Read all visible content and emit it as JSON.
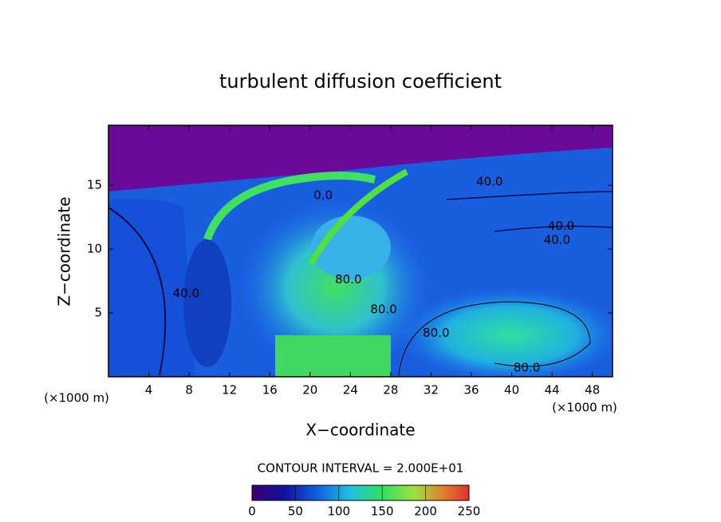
{
  "chart_data": {
    "type": "contour",
    "title": "turbulent diffusion coefficient",
    "x_label": "X−coordinate",
    "y_label": "Z−coordinate",
    "x_unit": "(×1000 m)",
    "y_unit": "(×1000 m)",
    "xlim": [
      0,
      50
    ],
    "ylim": [
      0,
      19.7
    ],
    "xticks": [
      4,
      8,
      12,
      16,
      20,
      24,
      28,
      32,
      36,
      40,
      44,
      48
    ],
    "yticks": [
      5,
      10,
      15
    ],
    "contour_interval": "CONTOUR INTERVAL = 2.000E+01",
    "colorbar_lim": [
      0,
      250
    ],
    "colorbar_ticks": [
      0,
      50,
      100,
      150,
      200,
      250
    ],
    "annotations": [
      {
        "text": "40.0",
        "x": 37.8,
        "y": 15.25
      },
      {
        "text": "40.0",
        "x": 44.9,
        "y": 11.8
      },
      {
        "text": "40.0",
        "x": 44.5,
        "y": 10.7
      },
      {
        "text": "40.0",
        "x": 7.7,
        "y": 6.5
      },
      {
        "text": "0.0",
        "x": 21.3,
        "y": 14.2
      },
      {
        "text": "80.0",
        "x": 23.8,
        "y": 7.6
      },
      {
        "text": "80.0",
        "x": 27.3,
        "y": 5.25
      },
      {
        "text": "80.0",
        "x": 32.5,
        "y": 3.4
      },
      {
        "text": "80.0",
        "x": 41.5,
        "y": 0.7
      }
    ]
  }
}
